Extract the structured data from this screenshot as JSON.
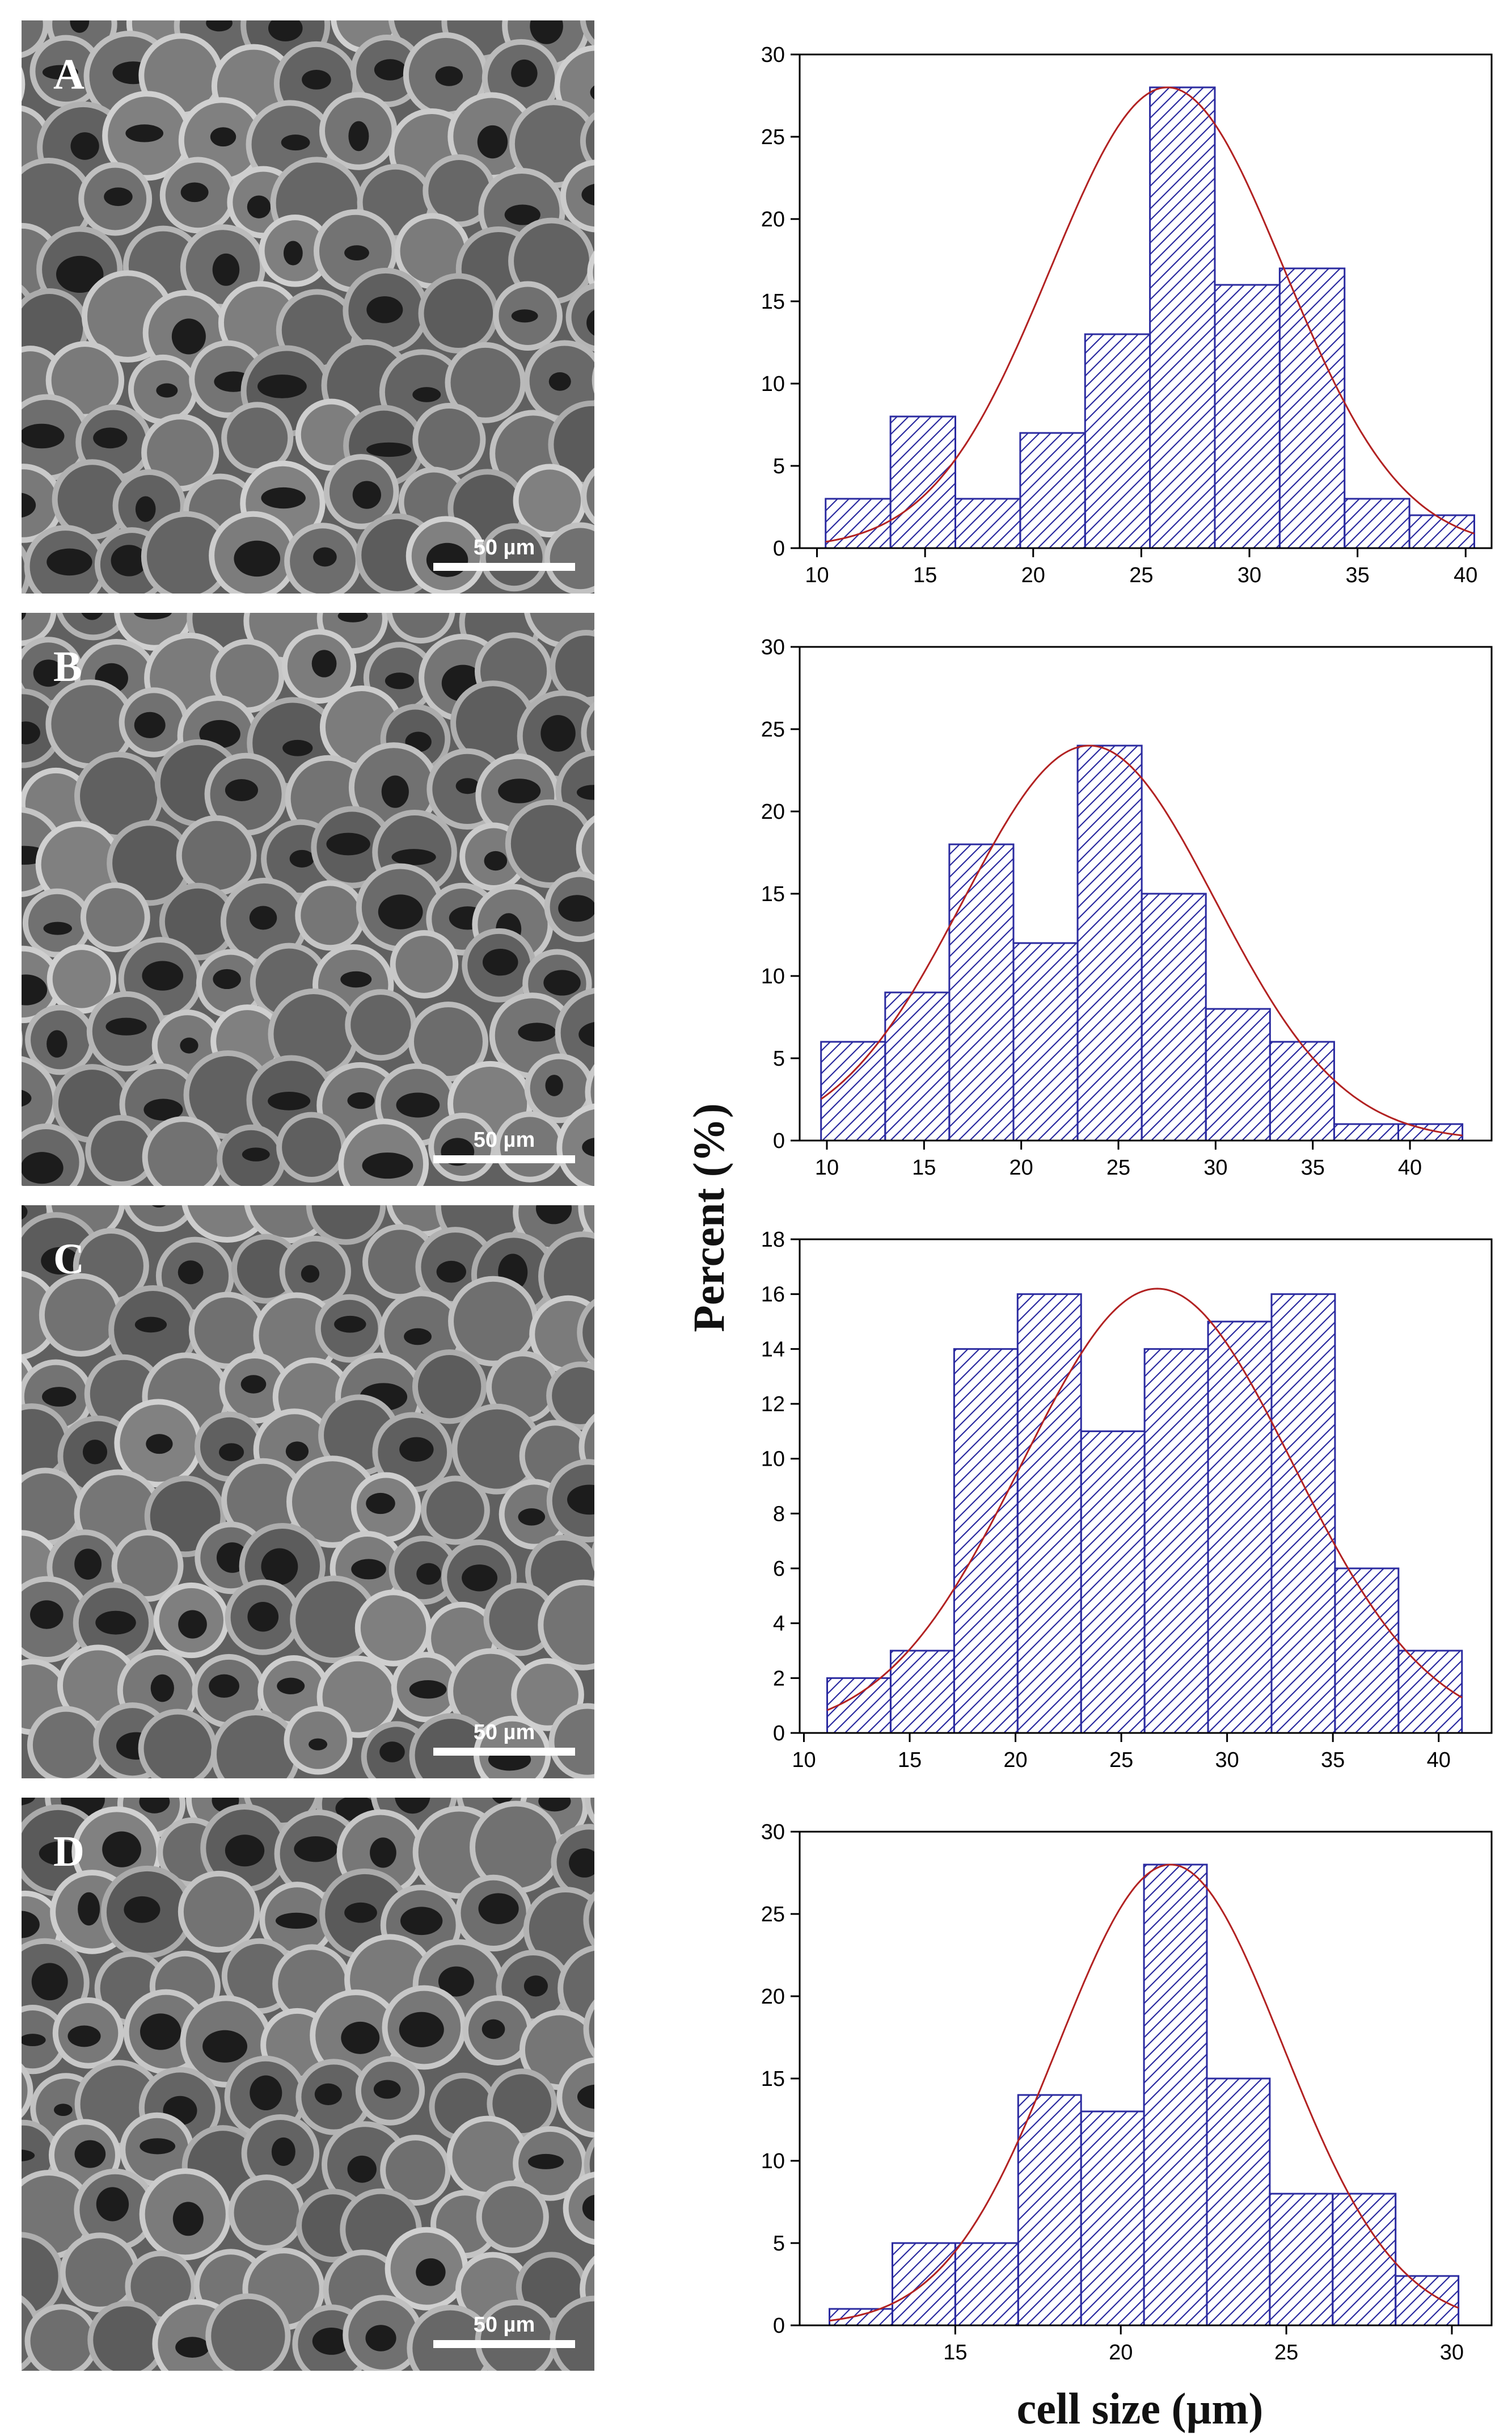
{
  "axis_titles": {
    "ylabel": "Percent (%)",
    "xlabel": "cell size (µm)"
  },
  "panels": [
    {
      "label": "A",
      "scale_text": "50 µm"
    },
    {
      "label": "B",
      "scale_text": "50 µm"
    },
    {
      "label": "C",
      "scale_text": "50 µm"
    },
    {
      "label": "D",
      "scale_text": "50 µm"
    }
  ],
  "colors": {
    "bar_edge": "#2b2ba0",
    "hatch": "#2b2ba0",
    "fit_curve": "#b22222",
    "axis": "#000000"
  },
  "chart_data": [
    {
      "type": "bar",
      "panel": "A",
      "bin_edges": [
        10.4,
        13.4,
        16.4,
        19.4,
        22.4,
        25.4,
        28.4,
        31.4,
        34.4,
        37.4,
        40.4
      ],
      "values": [
        3,
        8,
        3,
        7,
        13,
        28,
        16,
        17,
        3,
        2
      ],
      "xlim": [
        9.2,
        41.2
      ],
      "ylim": [
        0,
        30
      ],
      "xticks": [
        10,
        15,
        20,
        25,
        30,
        35,
        40
      ],
      "yticks": [
        0,
        5,
        10,
        15,
        20,
        25,
        30
      ],
      "fit": {
        "mean": 26.2,
        "sd": 5.4,
        "peak": 28
      }
    },
    {
      "type": "bar",
      "panel": "B",
      "bin_edges": [
        9.7,
        13.0,
        16.3,
        19.6,
        22.9,
        26.2,
        29.5,
        32.8,
        36.1,
        39.4,
        42.7
      ],
      "values": [
        6,
        9,
        18,
        12,
        24,
        15,
        8,
        6,
        1,
        1
      ],
      "xlim": [
        8.6,
        44.2
      ],
      "ylim": [
        0,
        30
      ],
      "xticks": [
        10,
        15,
        20,
        25,
        30,
        35,
        40
      ],
      "yticks": [
        0,
        5,
        10,
        15,
        20,
        25,
        30
      ],
      "fit": {
        "mean": 23.5,
        "sd": 6.5,
        "peak": 24
      }
    },
    {
      "type": "bar",
      "panel": "C",
      "bin_edges": [
        11.1,
        14.1,
        17.1,
        20.1,
        23.1,
        26.1,
        29.1,
        32.1,
        35.1,
        38.1,
        41.1
      ],
      "values": [
        2,
        3,
        14,
        16,
        11,
        14,
        15,
        16,
        6,
        3
      ],
      "xlim": [
        9.8,
        42.5
      ],
      "ylim": [
        0,
        18
      ],
      "xticks": [
        10,
        15,
        20,
        25,
        30,
        35,
        40
      ],
      "yticks": [
        0,
        2,
        4,
        6,
        8,
        10,
        12,
        14,
        16,
        18
      ],
      "fit": {
        "mean": 26.7,
        "sd": 6.4,
        "peak": 16.2
      }
    },
    {
      "type": "bar",
      "panel": "D",
      "bin_edges": [
        11.2,
        13.1,
        15.0,
        16.9,
        18.8,
        20.7,
        22.6,
        24.5,
        26.4,
        28.3,
        30.2
      ],
      "values": [
        1,
        5,
        5,
        14,
        13,
        28,
        15,
        8,
        8,
        3
      ],
      "xlim": [
        10.3,
        31.2
      ],
      "ylim": [
        0,
        30
      ],
      "xticks": [
        15,
        20,
        25,
        30
      ],
      "yticks": [
        0,
        5,
        10,
        15,
        20,
        25,
        30
      ],
      "fit": {
        "mean": 21.5,
        "sd": 3.4,
        "peak": 28
      }
    }
  ]
}
